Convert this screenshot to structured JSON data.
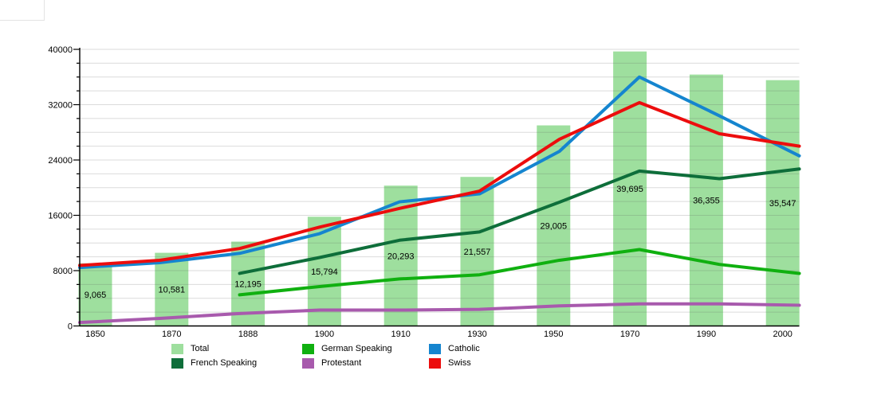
{
  "chart_data": {
    "type": "bar",
    "title": "",
    "xlabel": "",
    "ylabel": "",
    "categories": [
      "1850",
      "1870",
      "1888",
      "1900",
      "1910",
      "1930",
      "1950",
      "1970",
      "1990",
      "2000"
    ],
    "bar_series": {
      "name": "Total",
      "values": [
        9065,
        10581,
        12195,
        15794,
        20293,
        21557,
        29005,
        39695,
        36355,
        35547
      ],
      "labels": [
        "9,065",
        "10,581",
        "12,195",
        "15,794",
        "20,293",
        "21,557",
        "29,005",
        "39,695",
        "36,355",
        "35,547"
      ],
      "color": "#9edf9e"
    },
    "line_series": [
      {
        "name": "German Speaking",
        "color": "#10b010",
        "values": [
          null,
          null,
          4500,
          5700,
          6800,
          7400,
          9500,
          11050,
          8900,
          7600
        ]
      },
      {
        "name": "French Speaking",
        "color": "#0e6e3a",
        "values": [
          null,
          null,
          7600,
          9900,
          12400,
          13600,
          17900,
          22400,
          21300,
          22700
        ]
      },
      {
        "name": "Catholic",
        "color": "#1585cf",
        "values": [
          8450,
          9150,
          10500,
          13350,
          17950,
          19100,
          25250,
          36000,
          30400,
          24600
        ]
      },
      {
        "name": "Protestant",
        "color": "#a85aad",
        "values": [
          500,
          1100,
          1800,
          2300,
          2300,
          2400,
          2900,
          3200,
          3200,
          3000
        ]
      },
      {
        "name": "Swiss",
        "color": "#ec0d0d",
        "values": [
          8750,
          9500,
          11200,
          14300,
          17000,
          19500,
          27000,
          32300,
          27800,
          26000
        ]
      }
    ],
    "ylim": [
      0,
      40000
    ],
    "ytick_labels": [
      "0",
      "8000",
      "16000",
      "24000",
      "32000",
      "40000"
    ],
    "ytick_major_step": 8000,
    "ytick_minor_step": 2000,
    "grid": "horizontal, every 2000",
    "legend_position": "bottom",
    "legend": [
      {
        "label": "Total",
        "color": "#9edf9e"
      },
      {
        "label": "German Speaking",
        "color": "#10b010"
      },
      {
        "label": "Catholic",
        "color": "#1585cf"
      },
      {
        "label": "French Speaking",
        "color": "#0e6e3a"
      },
      {
        "label": "Protestant",
        "color": "#a85aad"
      },
      {
        "label": "Swiss",
        "color": "#ec0d0d"
      }
    ]
  }
}
